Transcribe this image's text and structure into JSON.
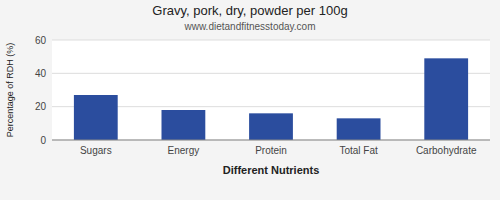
{
  "chart_data": {
    "type": "bar",
    "title": "Gravy, pork, dry, powder per 100g",
    "subtitle": "www.dietandfitnesstoday.com",
    "xlabel": "Different Nutrients",
    "ylabel": "Percentage of RDH (%)",
    "categories": [
      "Sugars",
      "Energy",
      "Protein",
      "Total Fat",
      "Carbohydrate"
    ],
    "values": [
      27,
      18,
      16,
      13,
      49
    ],
    "color": "#2b4d9e",
    "ylim": [
      0,
      60
    ],
    "yticks": [
      0,
      20,
      40,
      60
    ],
    "grid": true
  }
}
